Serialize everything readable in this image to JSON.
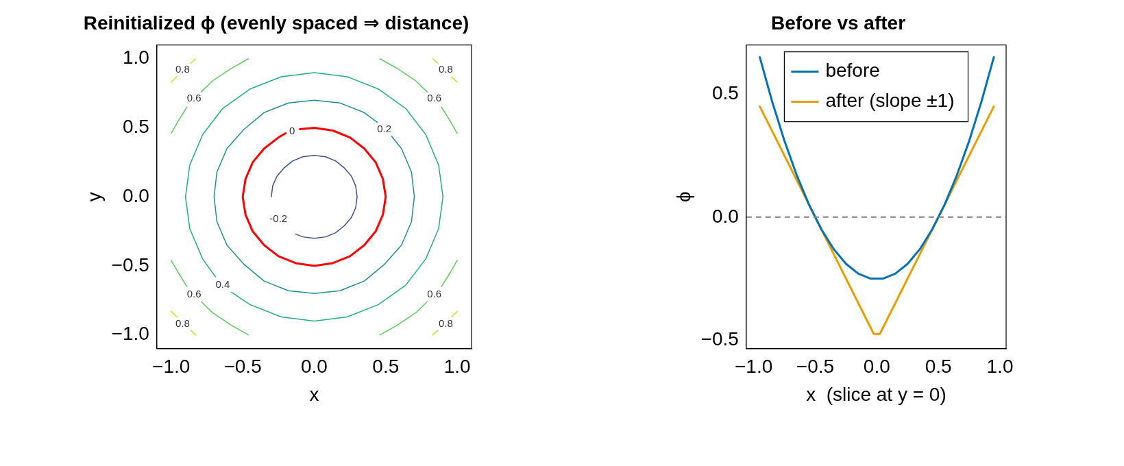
{
  "chart_data": [
    {
      "type": "line",
      "title": "Reinitialized ϕ (evenly spaced ⇒ distance)",
      "xlabel": "x",
      "ylabel": "y",
      "marker": "none",
      "grid": false,
      "legend": false,
      "xlim": [
        -1.1,
        1.1
      ],
      "ylim": [
        -1.1,
        1.1
      ],
      "xticks": [
        {
          "value": -1,
          "label": "−1.0"
        },
        {
          "value": -0.5,
          "label": "−0.5"
        },
        {
          "value": 0,
          "label": "0.0"
        },
        {
          "value": 0.5,
          "label": "0.5"
        },
        {
          "value": 1,
          "label": "1.0"
        }
      ],
      "yticks": [
        {
          "value": -1,
          "label": "−1.0"
        },
        {
          "value": -0.5,
          "label": "−0.5"
        },
        {
          "value": 0,
          "label": "0.0"
        },
        {
          "value": 0.5,
          "label": "0.5"
        },
        {
          "value": 1,
          "label": "1.0"
        }
      ],
      "series": [
        {
          "color": "#3b528b",
          "x": [
            -0.13,
            -0.08,
            0,
            0.08,
            0.15,
            0.21,
            0.26,
            0.29,
            0.3,
            0.29,
            0.26,
            0.21,
            0.15,
            0.08,
            0,
            -0.08,
            -0.15,
            -0.21,
            -0.26,
            -0.29,
            -0.3
          ],
          "values": [
            -0.27,
            -0.29,
            -0.3,
            -0.29,
            -0.26,
            -0.21,
            -0.15,
            -0.08,
            0,
            0.08,
            0.15,
            0.21,
            0.26,
            0.29,
            0.3,
            0.29,
            0.26,
            0.21,
            0.15,
            0.08,
            0
          ]
        },
        {
          "color": "#21908d",
          "x": [
            0.44,
            0.35,
            0.18,
            0,
            -0.18,
            -0.35,
            -0.49,
            -0.61,
            -0.68,
            -0.7,
            -0.68,
            -0.61,
            -0.49,
            -0.35,
            -0.18,
            0,
            0.18,
            0.35,
            0.49,
            0.61,
            0.68,
            0.7,
            0.68,
            0.61,
            0.54
          ],
          "values": [
            0.54,
            0.61,
            0.68,
            0.7,
            0.68,
            0.61,
            0.49,
            0.35,
            0.18,
            0,
            -0.18,
            -0.35,
            -0.49,
            -0.61,
            -0.68,
            -0.7,
            -0.68,
            -0.61,
            -0.49,
            -0.35,
            -0.18,
            0,
            0.18,
            0.35,
            0.44
          ]
        },
        {
          "color": "#27ad81",
          "x": [
            -0.58,
            -0.45,
            -0.23,
            0,
            0.23,
            0.45,
            0.64,
            0.78,
            0.87,
            0.9,
            0.87,
            0.78,
            0.64,
            0.45,
            0.23,
            0,
            -0.23,
            -0.45,
            -0.64,
            -0.78,
            -0.87,
            -0.9,
            -0.87,
            -0.78,
            -0.69
          ],
          "values": [
            -0.69,
            -0.78,
            -0.87,
            -0.9,
            -0.87,
            -0.78,
            -0.64,
            -0.45,
            -0.23,
            0,
            0.23,
            0.45,
            0.64,
            0.78,
            0.87,
            0.9,
            0.87,
            0.78,
            0.64,
            0.45,
            0.23,
            0,
            -0.23,
            -0.45,
            -0.58
          ]
        },
        {
          "color": "#5ec962",
          "x": [
            -0.46,
            -0.58,
            -0.71,
            -0.79,
            null,
            -0.89,
            -0.95,
            -1
          ],
          "values": [
            1,
            0.93,
            0.84,
            0.76,
            null,
            0.65,
            0.55,
            0.46
          ]
        },
        {
          "color": "#5ec962",
          "x": [
            0.46,
            0.58,
            0.71,
            0.79,
            null,
            0.89,
            0.95,
            1
          ],
          "values": [
            1,
            0.93,
            0.84,
            0.76,
            null,
            0.65,
            0.55,
            0.46
          ]
        },
        {
          "color": "#5ec962",
          "x": [
            -0.46,
            -0.58,
            -0.71,
            -0.79,
            null,
            -0.89,
            -0.95,
            -1
          ],
          "values": [
            -1,
            -0.93,
            -0.84,
            -0.76,
            null,
            -0.65,
            -0.55,
            -0.46
          ]
        },
        {
          "color": "#5ec962",
          "x": [
            0.46,
            0.58,
            0.71,
            0.79,
            null,
            0.89,
            0.95,
            1
          ],
          "values": [
            -1,
            -0.93,
            -0.84,
            -0.76,
            null,
            -0.65,
            -0.55,
            -0.46
          ]
        },
        {
          "color": "#c8e020",
          "x": [
            -1,
            -0.96,
            null,
            -0.87,
            -0.83
          ],
          "values": [
            0.83,
            0.87,
            null,
            0.96,
            1
          ]
        },
        {
          "color": "#c8e020",
          "x": [
            1,
            0.96,
            null,
            0.87,
            0.83
          ],
          "values": [
            0.83,
            0.87,
            null,
            0.96,
            1
          ]
        },
        {
          "color": "#c8e020",
          "x": [
            -1,
            -0.96,
            null,
            -0.87,
            -0.83
          ],
          "values": [
            -0.83,
            -0.87,
            null,
            -0.96,
            -1
          ]
        },
        {
          "color": "#c8e020",
          "x": [
            1,
            0.96,
            null,
            0.87,
            0.83
          ],
          "values": [
            -0.83,
            -0.87,
            null,
            -0.96,
            -1
          ]
        },
        {
          "color": "#ff0000",
          "x": [
            -0.2,
            -0.25,
            -0.35,
            -0.43,
            -0.48,
            -0.5,
            -0.48,
            -0.43,
            -0.35,
            -0.25,
            -0.13,
            0,
            0.13,
            0.25,
            0.35,
            0.43,
            0.48,
            0.5,
            0.48,
            0.43,
            0.35,
            0.25,
            0.13,
            0,
            -0.1
          ],
          "values": [
            0.46,
            0.43,
            0.35,
            0.25,
            0.13,
            0,
            -0.13,
            -0.25,
            -0.35,
            -0.43,
            -0.48,
            -0.5,
            -0.48,
            -0.43,
            -0.35,
            -0.25,
            -0.13,
            0,
            0.13,
            0.25,
            0.35,
            0.43,
            0.48,
            0.5,
            0.49
          ]
        }
      ],
      "annotations": [
        {
          "text": "-0.2",
          "x": -0.25,
          "y": -0.16
        },
        {
          "text": "0",
          "x": -0.155,
          "y": 0.475
        },
        {
          "text": "0.2",
          "x": 0.49,
          "y": 0.49
        },
        {
          "text": "0.4",
          "x": -0.64,
          "y": -0.64
        },
        {
          "text": "0.6",
          "x": -0.84,
          "y": 0.71
        },
        {
          "text": "0.6",
          "x": 0.84,
          "y": 0.71
        },
        {
          "text": "0.6",
          "x": -0.84,
          "y": -0.71
        },
        {
          "text": "0.6",
          "x": 0.84,
          "y": -0.71
        },
        {
          "text": "0.8",
          "x": -0.92,
          "y": 0.92
        },
        {
          "text": "0.8",
          "x": 0.92,
          "y": 0.92
        },
        {
          "text": "0.8",
          "x": -0.92,
          "y": -0.92
        },
        {
          "text": "0.8",
          "x": 0.92,
          "y": -0.92
        }
      ]
    },
    {
      "type": "line",
      "title": "Before vs after",
      "xlabel": "x  (slice at y = 0)",
      "ylabel": "ϕ",
      "marker": "none",
      "grid": false,
      "legend": "top",
      "xlim": [
        -1.06,
        1.05
      ],
      "ylim": [
        -0.535,
        0.7
      ],
      "xticks": [
        {
          "value": -1,
          "label": "−1.0"
        },
        {
          "value": -0.5,
          "label": "−0.5"
        },
        {
          "value": 0,
          "label": "0.0"
        },
        {
          "value": 0.5,
          "label": "0.5"
        },
        {
          "value": 1,
          "label": "1.0"
        }
      ],
      "yticks": [
        {
          "value": -0.5,
          "label": "−0.5"
        },
        {
          "value": 0,
          "label": "0.0"
        },
        {
          "value": 0.5,
          "label": "0.5"
        }
      ],
      "ref_lines": [
        {
          "axis": "y",
          "value": 0,
          "color": "#808080",
          "line_style": "dashed"
        }
      ],
      "series": [
        {
          "name": "before",
          "color": "#0072b2",
          "x": [
            -0.95,
            -0.85,
            -0.75,
            -0.65,
            -0.55,
            -0.45,
            -0.35,
            -0.25,
            -0.15,
            -0.05,
            0,
            0.05,
            0.15,
            0.25,
            0.35,
            0.45,
            0.55,
            0.65,
            0.75,
            0.85,
            0.95
          ],
          "values": [
            0.65,
            0.47,
            0.31,
            0.17,
            0.05,
            -0.05,
            -0.13,
            -0.19,
            -0.23,
            -0.25,
            -0.25,
            -0.25,
            -0.23,
            -0.19,
            -0.13,
            -0.05,
            0.05,
            0.17,
            0.31,
            0.47,
            0.65
          ]
        },
        {
          "name": "after (slope ±1)",
          "color": "#e69f00",
          "x": [
            -0.95,
            -0.5,
            -0.05,
            -0.025,
            0.025,
            0.05,
            0.5,
            0.95
          ],
          "values": [
            0.45,
            0,
            -0.45,
            -0.475,
            -0.475,
            -0.45,
            0,
            0.45
          ]
        }
      ]
    }
  ]
}
